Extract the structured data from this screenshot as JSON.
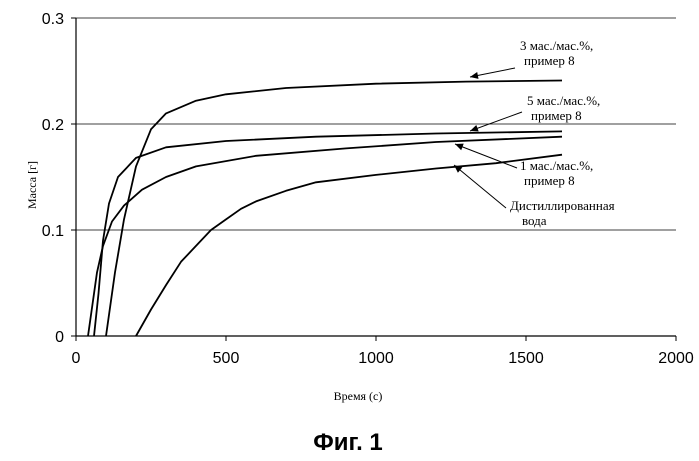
{
  "chart_data": {
    "type": "line",
    "title": "",
    "xlabel": "Время (с)",
    "ylabel": "Масса [г]",
    "xlim": [
      0,
      2000
    ],
    "ylim": [
      0,
      0.3
    ],
    "x_ticks": [
      "0",
      "500",
      "1000",
      "1500",
      "2000"
    ],
    "y_ticks": [
      "0",
      "0.1",
      "0.2",
      "0.3"
    ],
    "grid": "horizontal",
    "series": [
      {
        "name": "3 мас./мас.%, пример 8",
        "x": [
          100,
          130,
          160,
          200,
          250,
          300,
          400,
          500,
          700,
          1000,
          1300,
          1620
        ],
        "y": [
          0,
          0.06,
          0.11,
          0.16,
          0.195,
          0.21,
          0.222,
          0.228,
          0.234,
          0.238,
          0.24,
          0.241
        ]
      },
      {
        "name": "5 мас./мас.%, пример 8",
        "x": [
          60,
          75,
          90,
          110,
          140,
          200,
          300,
          500,
          800,
          1200,
          1620
        ],
        "y": [
          0,
          0.04,
          0.09,
          0.125,
          0.15,
          0.168,
          0.178,
          0.184,
          0.188,
          0.191,
          0.193
        ]
      },
      {
        "name": "1 мас./мас.%, пример 8",
        "x": [
          40,
          55,
          70,
          90,
          120,
          160,
          220,
          300,
          400,
          600,
          900,
          1200,
          1620
        ],
        "y": [
          0,
          0.03,
          0.06,
          0.085,
          0.108,
          0.123,
          0.138,
          0.15,
          0.16,
          0.17,
          0.177,
          0.183,
          0.188
        ]
      },
      {
        "name": "Дистиллированная вода",
        "x": [
          200,
          250,
          300,
          350,
          400,
          450,
          500,
          550,
          600,
          700,
          800,
          1000,
          1200,
          1400,
          1620
        ],
        "y": [
          0,
          0.025,
          0.048,
          0.07,
          0.085,
          0.1,
          0.11,
          0.12,
          0.127,
          0.137,
          0.145,
          0.152,
          0.158,
          0.163,
          0.171
        ]
      }
    ],
    "annotations": [
      {
        "lines": [
          "3 мас./мас.%,",
          "пример 8"
        ],
        "series": 0
      },
      {
        "lines": [
          "5 мас./мас.%,",
          "пример 8"
        ],
        "series": 1
      },
      {
        "lines": [
          "1 мас./мас.%,",
          "пример 8"
        ],
        "series": 2
      },
      {
        "lines": [
          "Дистиллированная",
          "вода"
        ],
        "series": 3
      }
    ]
  },
  "figure_caption": "Фиг. 1"
}
